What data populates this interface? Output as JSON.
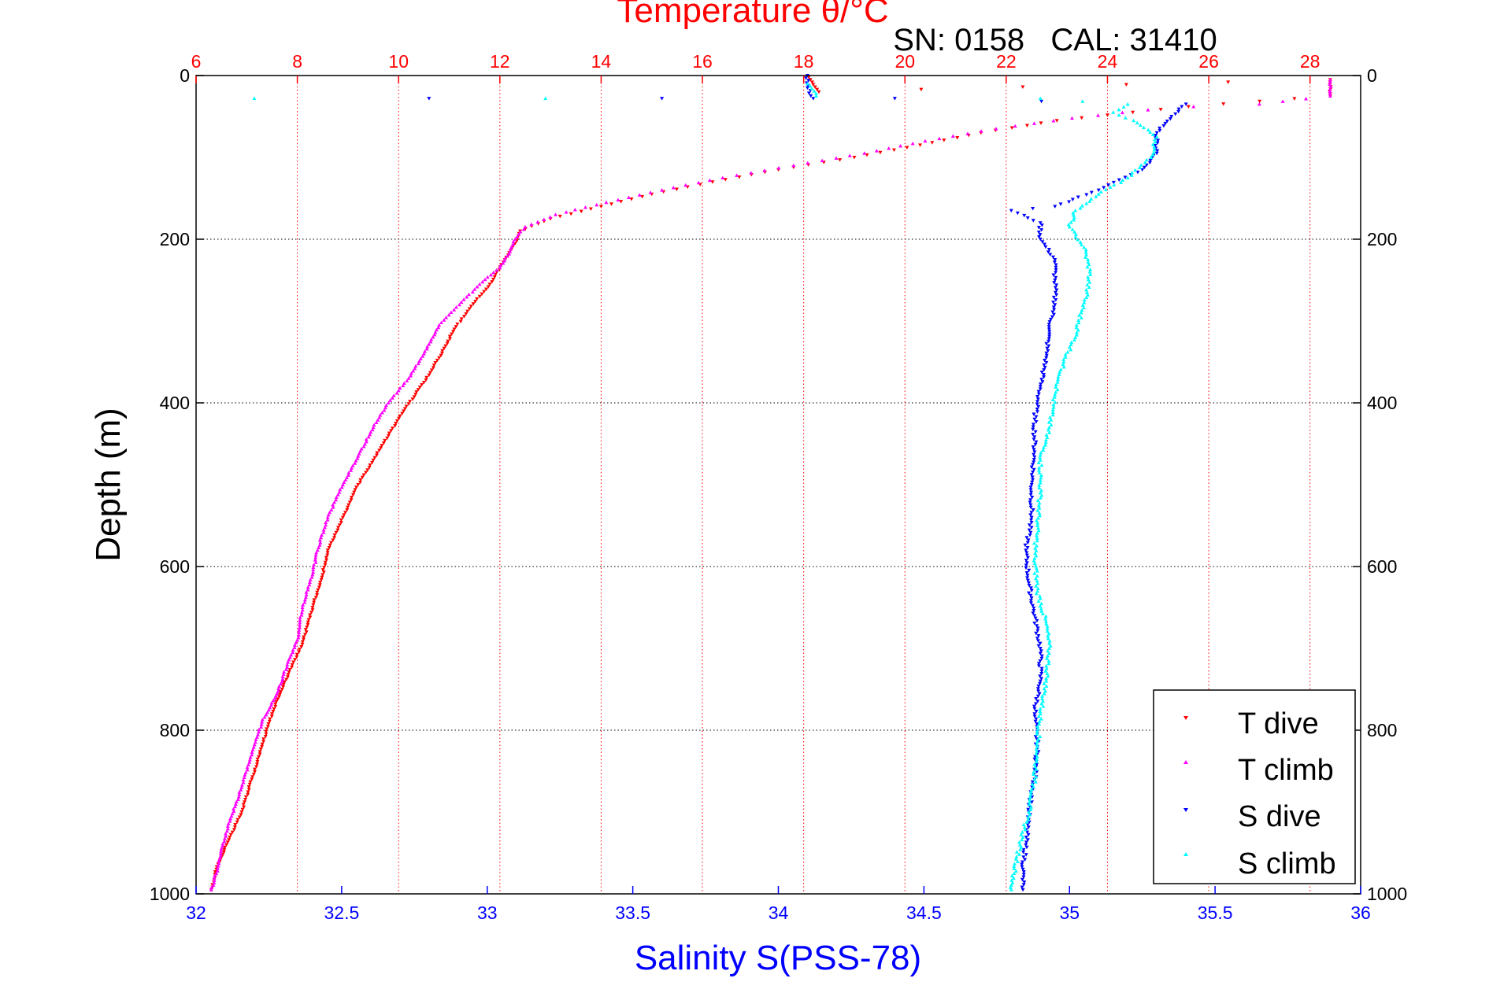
{
  "chart_data": {
    "type": "scatter",
    "title": "Temperature θ/°C",
    "subtitle": "SN: 0158   CAL: 31410",
    "ylabel": "Depth (m)",
    "xlabel_bottom": "Salinity S(PSS-78)",
    "xlabel_top": "Temperature θ/°C",
    "colors": {
      "temperature_axis": "#ff0000",
      "salinity_axis": "#0000ff",
      "t_dive": "#ff0000",
      "t_climb": "#ff00ff",
      "s_dive": "#0000ff",
      "s_climb": "#00ffff",
      "grid_temp": "#ff0000",
      "grid_depth": "#000000"
    },
    "axes": {
      "depth_range": [
        0,
        1000
      ],
      "depth_ticks": [
        "0",
        "200",
        "400",
        "600",
        "800",
        "1000"
      ],
      "depth_tick_values": [
        0,
        200,
        400,
        600,
        800,
        1000
      ],
      "temperature_range": [
        6,
        29
      ],
      "temperature_ticks": [
        "6",
        "8",
        "10",
        "12",
        "14",
        "16",
        "18",
        "20",
        "22",
        "24",
        "26",
        "28"
      ],
      "temperature_tick_values": [
        6,
        8,
        10,
        12,
        14,
        16,
        18,
        20,
        22,
        24,
        26,
        28
      ],
      "salinity_range": [
        32,
        36
      ],
      "salinity_ticks": [
        "32",
        "32.5",
        "33",
        "33.5",
        "34",
        "34.5",
        "35",
        "35.5",
        "36"
      ],
      "salinity_tick_values": [
        32,
        32.5,
        33,
        33.5,
        34,
        34.5,
        35,
        35.5,
        36
      ]
    },
    "legend": {
      "position": "bottom-right",
      "entries": [
        "T dive",
        "T climb",
        "S dive",
        "S climb"
      ]
    },
    "series": [
      {
        "name": "T dive",
        "marker": "triangle-down",
        "axis": "temperature",
        "points": [
          [
            18.1,
            2
          ],
          [
            18.3,
            20
          ],
          [
            28.4,
            5
          ],
          [
            28.4,
            25
          ],
          [
            25.6,
            38
          ],
          [
            24.5,
            45
          ],
          [
            23.0,
            55
          ],
          [
            21.5,
            70
          ],
          [
            20.3,
            85
          ],
          [
            19.0,
            100
          ],
          [
            17.5,
            115
          ],
          [
            16.2,
            130
          ],
          [
            15.0,
            145
          ],
          [
            14.0,
            160
          ],
          [
            13.0,
            175
          ],
          [
            12.4,
            190
          ],
          [
            12.3,
            205
          ],
          [
            12.1,
            225
          ],
          [
            11.8,
            255
          ],
          [
            11.4,
            285
          ],
          [
            11.1,
            310
          ],
          [
            10.8,
            345
          ],
          [
            10.5,
            375
          ],
          [
            10.1,
            410
          ],
          [
            9.8,
            440
          ],
          [
            9.5,
            470
          ],
          [
            9.2,
            500
          ],
          [
            8.9,
            540
          ],
          [
            8.6,
            580
          ],
          [
            8.5,
            610
          ],
          [
            8.3,
            650
          ],
          [
            8.1,
            695
          ],
          [
            7.9,
            720
          ],
          [
            7.7,
            750
          ],
          [
            7.5,
            780
          ],
          [
            7.3,
            820
          ],
          [
            7.1,
            860
          ],
          [
            6.9,
            900
          ],
          [
            6.6,
            940
          ],
          [
            6.4,
            970
          ],
          [
            6.3,
            995
          ]
        ]
      },
      {
        "name": "T climb",
        "marker": "triangle-up",
        "axis": "temperature",
        "points": [
          [
            28.4,
            5
          ],
          [
            28.4,
            25
          ],
          [
            27.0,
            35
          ],
          [
            25.7,
            38
          ],
          [
            24.8,
            42
          ],
          [
            23.3,
            52
          ],
          [
            21.8,
            65
          ],
          [
            20.4,
            80
          ],
          [
            19.2,
            95
          ],
          [
            17.8,
            110
          ],
          [
            16.4,
            125
          ],
          [
            15.2,
            140
          ],
          [
            14.1,
            155
          ],
          [
            13.1,
            170
          ],
          [
            12.5,
            185
          ],
          [
            12.3,
            200
          ],
          [
            12.2,
            215
          ],
          [
            12.0,
            235
          ],
          [
            11.6,
            255
          ],
          [
            11.2,
            280
          ],
          [
            10.8,
            305
          ],
          [
            10.5,
            340
          ],
          [
            10.2,
            370
          ],
          [
            9.8,
            400
          ],
          [
            9.5,
            430
          ],
          [
            9.2,
            465
          ],
          [
            8.9,
            500
          ],
          [
            8.6,
            540
          ],
          [
            8.4,
            580
          ],
          [
            8.3,
            610
          ],
          [
            8.1,
            650
          ],
          [
            8.0,
            690
          ],
          [
            7.8,
            720
          ],
          [
            7.6,
            755
          ],
          [
            7.3,
            790
          ],
          [
            7.1,
            830
          ],
          [
            6.9,
            870
          ],
          [
            6.7,
            905
          ],
          [
            6.5,
            945
          ],
          [
            6.4,
            975
          ],
          [
            6.3,
            995
          ]
        ]
      },
      {
        "name": "S dive",
        "marker": "triangle-down",
        "axis": "salinity",
        "points": [
          [
            34.1,
            0
          ],
          [
            34.1,
            15
          ],
          [
            34.12,
            28
          ],
          [
            32.8,
            28
          ],
          [
            33.6,
            28
          ],
          [
            34.4,
            28
          ],
          [
            35.4,
            35
          ],
          [
            35.35,
            50
          ],
          [
            35.3,
            70
          ],
          [
            35.3,
            95
          ],
          [
            35.25,
            115
          ],
          [
            35.1,
            140
          ],
          [
            34.95,
            160
          ],
          [
            34.8,
            165
          ],
          [
            34.9,
            180
          ],
          [
            34.9,
            200
          ],
          [
            34.95,
            225
          ],
          [
            34.95,
            250
          ],
          [
            34.95,
            280
          ],
          [
            34.93,
            310
          ],
          [
            34.92,
            345
          ],
          [
            34.9,
            380
          ],
          [
            34.88,
            420
          ],
          [
            34.88,
            460
          ],
          [
            34.87,
            500
          ],
          [
            34.87,
            540
          ],
          [
            34.85,
            580
          ],
          [
            34.86,
            620
          ],
          [
            34.88,
            660
          ],
          [
            34.9,
            700
          ],
          [
            34.9,
            740
          ],
          [
            34.88,
            780
          ],
          [
            34.89,
            820
          ],
          [
            34.88,
            860
          ],
          [
            34.86,
            900
          ],
          [
            34.85,
            940
          ],
          [
            34.84,
            970
          ],
          [
            34.84,
            995
          ]
        ]
      },
      {
        "name": "S climb",
        "marker": "triangle-up",
        "axis": "salinity",
        "points": [
          [
            34.1,
            10
          ],
          [
            34.13,
            25
          ],
          [
            32.2,
            28
          ],
          [
            33.2,
            28
          ],
          [
            34.9,
            28
          ],
          [
            35.2,
            35
          ],
          [
            35.15,
            45
          ],
          [
            35.22,
            55
          ],
          [
            35.3,
            75
          ],
          [
            35.28,
            100
          ],
          [
            35.2,
            125
          ],
          [
            35.1,
            145
          ],
          [
            35.02,
            165
          ],
          [
            35.0,
            185
          ],
          [
            35.05,
            210
          ],
          [
            35.07,
            240
          ],
          [
            35.06,
            265
          ],
          [
            35.04,
            290
          ],
          [
            35.02,
            320
          ],
          [
            34.98,
            350
          ],
          [
            34.95,
            390
          ],
          [
            34.93,
            430
          ],
          [
            34.9,
            470
          ],
          [
            34.9,
            510
          ],
          [
            34.89,
            550
          ],
          [
            34.88,
            590
          ],
          [
            34.89,
            630
          ],
          [
            34.92,
            670
          ],
          [
            34.93,
            700
          ],
          [
            34.92,
            740
          ],
          [
            34.9,
            780
          ],
          [
            34.89,
            820
          ],
          [
            34.88,
            860
          ],
          [
            34.86,
            900
          ],
          [
            34.83,
            940
          ],
          [
            34.81,
            975
          ],
          [
            34.8,
            995
          ]
        ]
      }
    ]
  }
}
